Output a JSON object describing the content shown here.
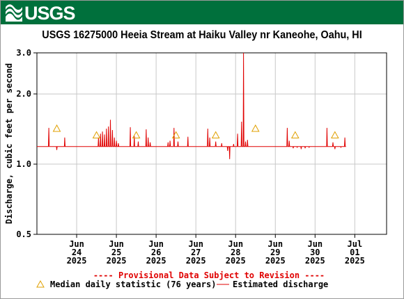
{
  "header": {
    "logo_text": "USGS",
    "logo_icon": "usgs-wave-icon",
    "brand_color": "#00703c"
  },
  "chart_data": {
    "type": "line",
    "title": "USGS 16275000 Heeia Stream at Haiku Valley nr Kaneohe, Oahu, HI",
    "ylabel": "Discharge, cubic feet per second",
    "y_scale": "log",
    "ylim": [
      0.5,
      3.0
    ],
    "y_ticks": [
      {
        "value": 0.5,
        "label": "0.5"
      },
      {
        "value": 1.0,
        "label": "1.0"
      },
      {
        "value": 2.0,
        "label": "2.0"
      },
      {
        "value": 3.0,
        "label": "3.0"
      }
    ],
    "x_ticks": [
      {
        "day": 24,
        "label": [
          "Jun",
          "24",
          "2025"
        ]
      },
      {
        "day": 25,
        "label": [
          "Jun",
          "25",
          "2025"
        ]
      },
      {
        "day": 26,
        "label": [
          "Jun",
          "26",
          "2025"
        ]
      },
      {
        "day": 27,
        "label": [
          "Jun",
          "27",
          "2025"
        ]
      },
      {
        "day": 28,
        "label": [
          "Jun",
          "28",
          "2025"
        ]
      },
      {
        "day": 29,
        "label": [
          "Jun",
          "29",
          "2025"
        ]
      },
      {
        "day": 30,
        "label": [
          "Jun",
          "30",
          "2025"
        ]
      },
      {
        "day": 31,
        "label": [
          "Jul",
          "01",
          "2025"
        ]
      }
    ],
    "xlim": [
      23.0,
      31.8
    ],
    "grid": true,
    "baseline": 1.19,
    "discharge_events": [
      [
        23.3,
        1.43
      ],
      [
        23.5,
        1.15
      ],
      [
        23.7,
        1.3
      ],
      [
        24.55,
        1.3
      ],
      [
        24.6,
        1.35
      ],
      [
        24.65,
        1.38
      ],
      [
        24.7,
        1.34
      ],
      [
        24.75,
        1.42
      ],
      [
        24.8,
        1.45
      ],
      [
        24.85,
        1.55
      ],
      [
        24.9,
        1.4
      ],
      [
        24.95,
        1.3
      ],
      [
        25.0,
        1.26
      ],
      [
        25.05,
        1.23
      ],
      [
        25.35,
        1.44
      ],
      [
        25.45,
        1.32
      ],
      [
        25.55,
        1.25
      ],
      [
        25.75,
        1.41
      ],
      [
        25.8,
        1.3
      ],
      [
        25.85,
        1.24
      ],
      [
        26.3,
        1.24
      ],
      [
        26.35,
        1.26
      ],
      [
        26.45,
        1.43
      ],
      [
        26.55,
        1.25
      ],
      [
        26.8,
        1.31
      ],
      [
        27.3,
        1.42
      ],
      [
        27.35,
        1.3
      ],
      [
        27.5,
        1.25
      ],
      [
        27.65,
        1.23
      ],
      [
        27.8,
        1.14
      ],
      [
        27.85,
        1.05
      ],
      [
        27.95,
        1.22
      ],
      [
        28.05,
        1.35
      ],
      [
        28.15,
        1.52
      ],
      [
        28.2,
        3.0
      ],
      [
        28.25,
        1.25
      ],
      [
        28.3,
        1.27
      ],
      [
        29.3,
        1.43
      ],
      [
        29.35,
        1.26
      ],
      [
        29.45,
        1.17
      ],
      [
        29.55,
        1.18
      ],
      [
        29.65,
        1.16
      ],
      [
        29.75,
        1.17
      ],
      [
        29.85,
        1.18
      ],
      [
        30.3,
        1.43
      ],
      [
        30.45,
        1.24
      ],
      [
        30.5,
        1.16
      ],
      [
        30.65,
        1.18
      ],
      [
        30.75,
        1.3
      ]
    ],
    "discharge_end_day": 30.78,
    "median_daily": [
      {
        "x": 23.5,
        "y": 1.42
      },
      {
        "x": 24.5,
        "y": 1.33
      },
      {
        "x": 25.5,
        "y": 1.33
      },
      {
        "x": 26.5,
        "y": 1.33
      },
      {
        "x": 27.5,
        "y": 1.33
      },
      {
        "x": 28.5,
        "y": 1.42
      },
      {
        "x": 29.5,
        "y": 1.33
      },
      {
        "x": 30.5,
        "y": 1.33
      }
    ],
    "provisional_note": "---- Provisional Data Subject to Revision ----",
    "legend": {
      "position": "bottom",
      "median_label": "Median daily statistic (76 years)",
      "discharge_label": "Estimated discharge"
    },
    "colors": {
      "discharge": "#e00000",
      "median": "#e0a000",
      "grid": "#c8c8c8",
      "note": "#e00000"
    }
  }
}
